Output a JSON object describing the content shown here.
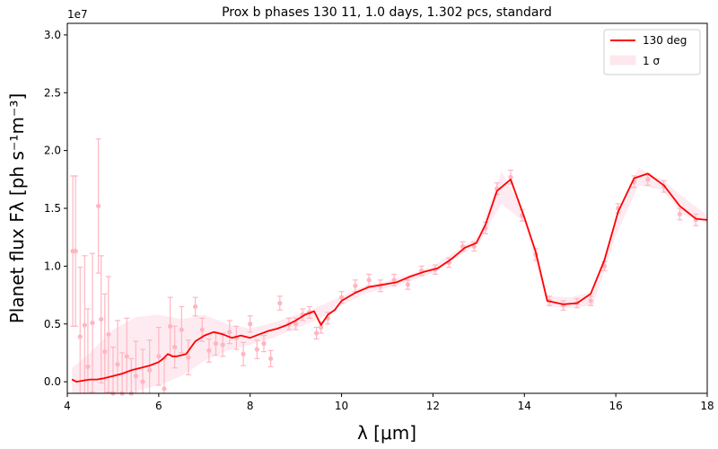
{
  "chart_data": {
    "type": "line",
    "title": "Prox b phases 130 11, 1.0 days, 1.302 pcs, standard",
    "xlabel": "λ [μm]",
    "ylabel": "Planet flux Fλ [ph s⁻¹m⁻³]",
    "y_offset_label": "1e7",
    "xlim": [
      4,
      18
    ],
    "ylim": [
      -0.1,
      3.1
    ],
    "y_scale_multiplier": 10000000,
    "grid": false,
    "legend_position": "top-right",
    "xticks": [
      4,
      6,
      8,
      10,
      12,
      14,
      16,
      18
    ],
    "yticks": [
      0.0,
      0.5,
      1.0,
      1.5,
      2.0,
      2.5,
      3.0
    ],
    "xtick_labels": [
      "4",
      "6",
      "8",
      "10",
      "12",
      "14",
      "16",
      "18"
    ],
    "ytick_labels": [
      "0.0",
      "0.5",
      "1.0",
      "1.5",
      "2.0",
      "2.5",
      "3.0"
    ],
    "colors": {
      "model": "#ff0000",
      "data": "#ffb6c1",
      "band": "#fde8ee"
    },
    "legend": [
      {
        "label": "130 deg",
        "kind": "line"
      },
      {
        "label": "1 σ",
        "kind": "patch"
      }
    ],
    "model": {
      "name": "130 deg",
      "x": [
        4.1,
        4.2,
        4.35,
        4.5,
        4.65,
        4.8,
        5.0,
        5.2,
        5.4,
        5.6,
        5.8,
        6.0,
        6.1,
        6.2,
        6.3,
        6.4,
        6.6,
        6.8,
        7.0,
        7.2,
        7.4,
        7.6,
        7.8,
        8.0,
        8.2,
        8.4,
        8.6,
        8.8,
        9.0,
        9.2,
        9.4,
        9.55,
        9.7,
        9.85,
        10.0,
        10.3,
        10.6,
        10.9,
        11.2,
        11.5,
        11.8,
        12.1,
        12.4,
        12.7,
        12.95,
        13.15,
        13.4,
        13.7,
        14.0,
        14.25,
        14.5,
        14.85,
        15.15,
        15.45,
        15.75,
        16.05,
        16.4,
        16.7,
        17.05,
        17.4,
        17.75,
        18.0
      ],
      "y": [
        0.02,
        0.0,
        0.01,
        0.02,
        0.02,
        0.03,
        0.05,
        0.07,
        0.1,
        0.12,
        0.14,
        0.17,
        0.2,
        0.24,
        0.22,
        0.22,
        0.24,
        0.35,
        0.4,
        0.43,
        0.41,
        0.38,
        0.4,
        0.38,
        0.41,
        0.44,
        0.46,
        0.49,
        0.53,
        0.58,
        0.61,
        0.49,
        0.58,
        0.62,
        0.7,
        0.77,
        0.82,
        0.84,
        0.86,
        0.91,
        0.95,
        0.98,
        1.06,
        1.16,
        1.2,
        1.36,
        1.65,
        1.75,
        1.42,
        1.12,
        0.7,
        0.67,
        0.68,
        0.76,
        1.05,
        1.47,
        1.76,
        1.8,
        1.7,
        1.52,
        1.41,
        1.4
      ]
    },
    "band": {
      "x": [
        4.1,
        4.5,
        5.0,
        5.5,
        6.0,
        6.5,
        7.0,
        7.5,
        8.0,
        8.5,
        9.0,
        9.5,
        10.0,
        10.5,
        11.0,
        11.5,
        12.0,
        12.5,
        13.0,
        13.5,
        14.0,
        14.5,
        15.0,
        15.5,
        16.0,
        16.5,
        17.0,
        17.5,
        18.0
      ],
      "lower": [
        -0.1,
        -0.1,
        -0.1,
        -0.08,
        -0.03,
        0.05,
        0.18,
        0.27,
        0.32,
        0.38,
        0.46,
        0.54,
        0.66,
        0.76,
        0.81,
        0.87,
        0.94,
        1.07,
        1.2,
        1.54,
        1.38,
        0.65,
        0.64,
        0.66,
        1.26,
        1.7,
        1.66,
        1.44,
        1.37
      ],
      "upper": [
        0.12,
        0.25,
        0.45,
        0.56,
        0.58,
        0.54,
        0.58,
        0.5,
        0.46,
        0.51,
        0.58,
        0.65,
        0.74,
        0.83,
        0.87,
        0.93,
        1.0,
        1.13,
        1.26,
        1.82,
        1.46,
        0.74,
        0.73,
        0.78,
        1.42,
        1.85,
        1.75,
        1.59,
        1.44
      ]
    },
    "observations": {
      "x": [
        4.12,
        4.18,
        4.28,
        4.38,
        4.45,
        4.55,
        4.68,
        4.74,
        4.82,
        4.9,
        5.0,
        5.1,
        5.2,
        5.3,
        5.4,
        5.5,
        5.65,
        5.8,
        6.0,
        6.12,
        6.25,
        6.35,
        6.5,
        6.65,
        6.8,
        6.95,
        7.1,
        7.25,
        7.4,
        7.55,
        7.7,
        7.85,
        8.0,
        8.15,
        8.3,
        8.45,
        8.65,
        8.85,
        9.0,
        9.15,
        9.3,
        9.45,
        9.55,
        9.7,
        10.0,
        10.3,
        10.6,
        10.85,
        11.15,
        11.45,
        11.75,
        12.05,
        12.35,
        12.65,
        12.9,
        13.15,
        13.4,
        13.7,
        13.95,
        14.25,
        14.55,
        14.85,
        15.15,
        15.45,
        15.75,
        16.05,
        16.4,
        16.7,
        17.05,
        17.4,
        17.75
      ],
      "y": [
        1.13,
        1.13,
        0.39,
        0.49,
        0.13,
        0.51,
        1.52,
        0.54,
        0.26,
        0.41,
        -0.1,
        0.15,
        -0.1,
        0.22,
        -0.1,
        0.05,
        0.0,
        0.1,
        0.22,
        -0.06,
        0.48,
        0.3,
        0.45,
        0.21,
        0.65,
        0.45,
        0.27,
        0.33,
        0.32,
        0.43,
        0.38,
        0.24,
        0.5,
        0.28,
        0.33,
        0.2,
        0.68,
        0.5,
        0.5,
        0.58,
        0.6,
        0.42,
        0.47,
        0.55,
        0.73,
        0.83,
        0.88,
        0.83,
        0.88,
        0.84,
        0.96,
        0.97,
        1.03,
        1.17,
        1.17,
        1.33,
        1.67,
        1.77,
        1.44,
        1.1,
        0.7,
        0.66,
        0.68,
        0.7,
        1.0,
        1.5,
        1.73,
        1.75,
        1.69,
        1.45,
        1.4
      ],
      "err": [
        0.65,
        0.65,
        0.6,
        0.6,
        0.5,
        0.6,
        0.58,
        0.55,
        0.5,
        0.5,
        0.4,
        0.38,
        0.35,
        0.33,
        0.3,
        0.3,
        0.28,
        0.26,
        0.25,
        0.26,
        0.25,
        0.18,
        0.2,
        0.15,
        0.08,
        0.1,
        0.1,
        0.1,
        0.1,
        0.1,
        0.1,
        0.1,
        0.07,
        0.08,
        0.07,
        0.07,
        0.06,
        0.05,
        0.05,
        0.05,
        0.05,
        0.05,
        0.05,
        0.05,
        0.05,
        0.05,
        0.05,
        0.05,
        0.05,
        0.04,
        0.04,
        0.04,
        0.04,
        0.04,
        0.04,
        0.05,
        0.05,
        0.06,
        0.05,
        0.05,
        0.04,
        0.04,
        0.04,
        0.04,
        0.04,
        0.04,
        0.05,
        0.05,
        0.05,
        0.05,
        0.05
      ]
    }
  }
}
